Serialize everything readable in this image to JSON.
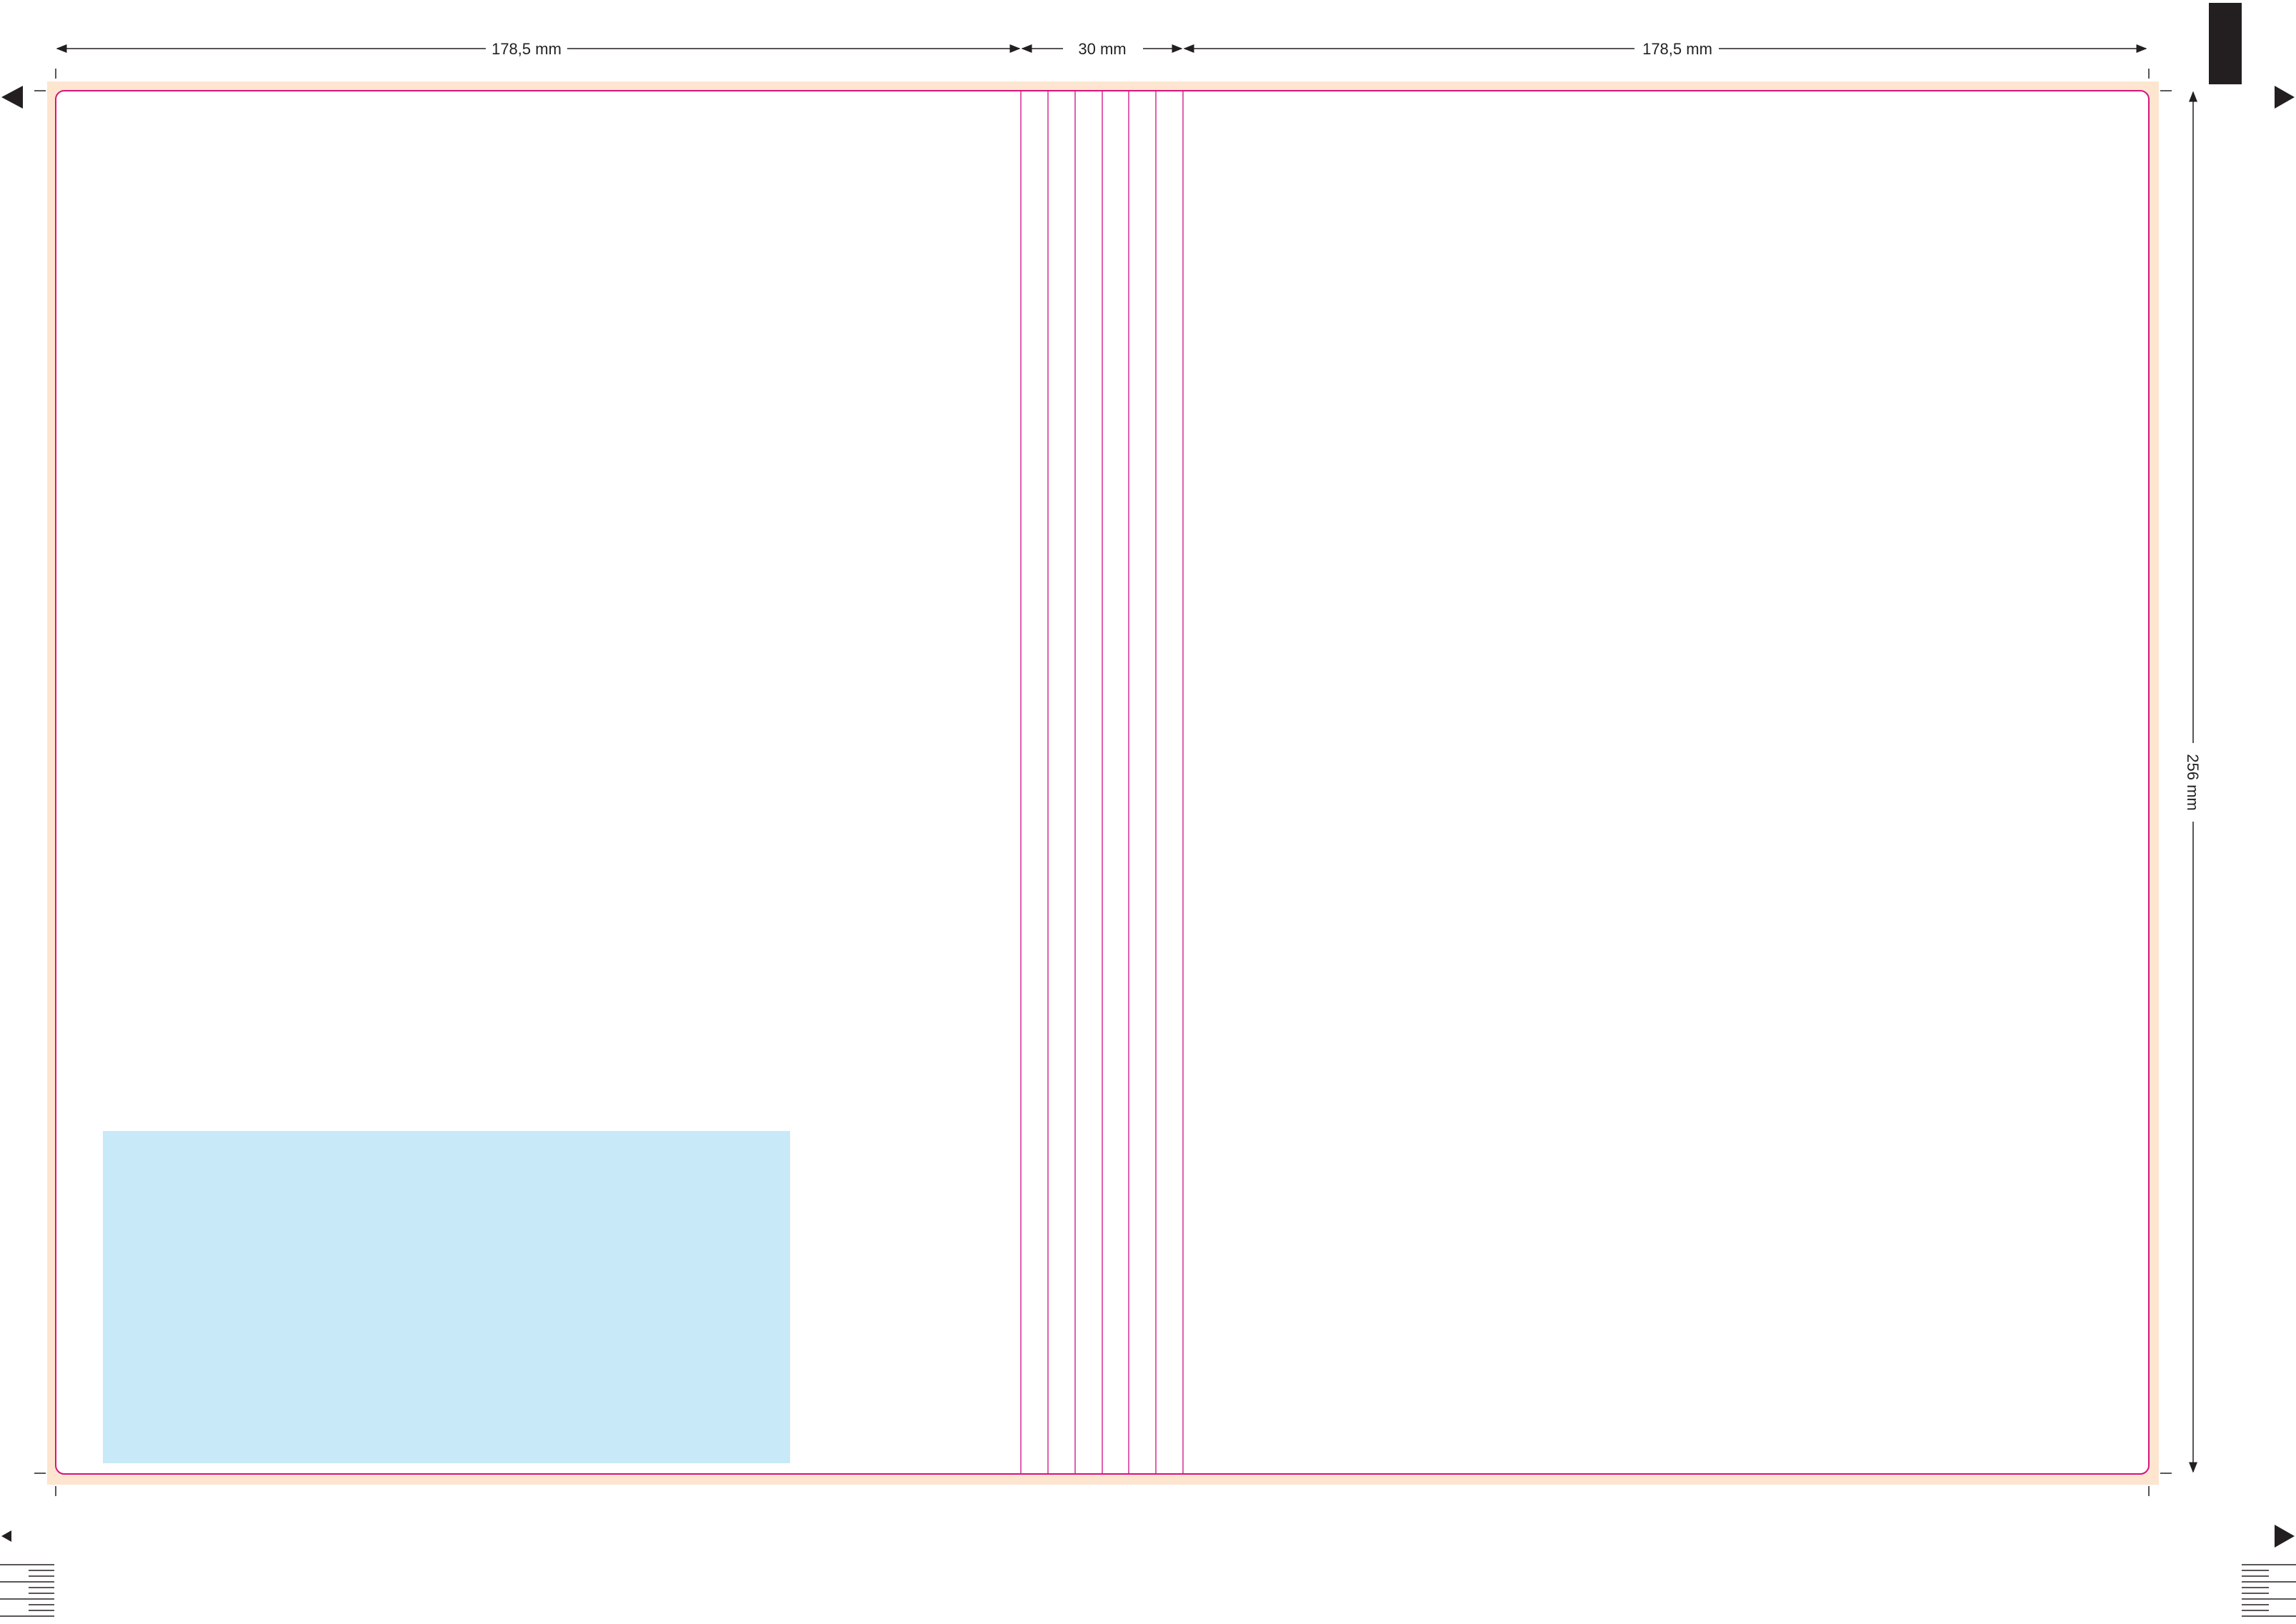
{
  "dimensions": {
    "left_panel_width": "178,5 mm",
    "spine_width": "30 mm",
    "right_panel_width": "178,5 mm",
    "height": "256 mm"
  },
  "colors": {
    "bleed_area": "#fde5cf",
    "trim_line": "#d6137f",
    "spine_guides": "#e060b0",
    "placeholder_box": "#c8e9f8",
    "registration_marks": "#231f20",
    "page": "#ffffff"
  }
}
